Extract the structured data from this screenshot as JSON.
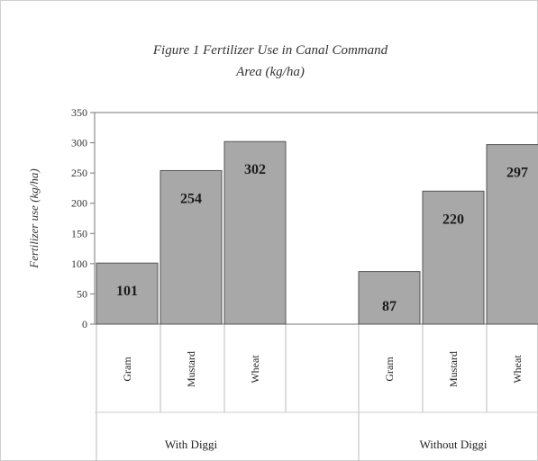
{
  "chart_data": {
    "type": "bar",
    "title": "Figure 1 Fertilizer Use in Canal Command",
    "subtitle": "Area (kg/ha)",
    "ylabel": "Fertilizer use (kg/ha)",
    "ylim": [
      0,
      350
    ],
    "yticks": [
      "0",
      "50",
      "100",
      "150",
      "200",
      "250",
      "300",
      "350"
    ],
    "grid": false,
    "groups": [
      {
        "name": "With Diggi",
        "categories": [
          "Gram",
          "Mustard",
          "Wheat"
        ],
        "values": [
          101,
          254,
          302
        ]
      },
      {
        "name": "Without Diggi",
        "categories": [
          "Gram",
          "Mustard",
          "Wheat"
        ],
        "values": [
          87,
          220,
          297
        ]
      }
    ],
    "colors": {
      "bar": "#a8a8a8",
      "bar_stroke": "#555555",
      "axis": "#777777"
    }
  }
}
